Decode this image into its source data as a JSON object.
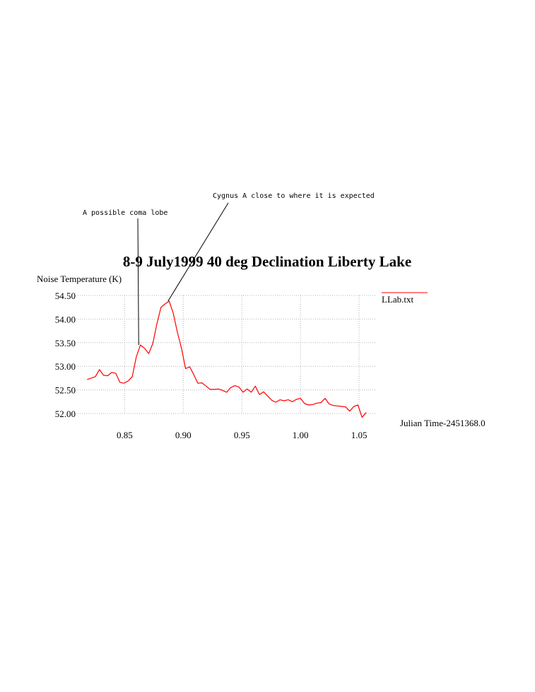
{
  "chart_data": {
    "type": "line",
    "title": "8-9 July1999 40 deg Declination Liberty Lake",
    "ylabel": "Noise Temperature (K)",
    "xlabel": "Julian Time-2451368.0",
    "xlim": [
      0.81,
      1.065
    ],
    "ylim": [
      52.0,
      54.5
    ],
    "xticks": [
      "0.85",
      "0.90",
      "0.95",
      "1.00",
      "1.05"
    ],
    "yticks": [
      "52.00",
      "52.50",
      "53.00",
      "53.50",
      "54.00",
      "54.50"
    ],
    "grid": true,
    "legend_position": "right",
    "series": [
      {
        "name": "LLab.txt",
        "color": "#ff0000",
        "x": [
          0.818,
          0.8215,
          0.825,
          0.8285,
          0.832,
          0.8355,
          0.839,
          0.8425,
          0.846,
          0.8495,
          0.853,
          0.8565,
          0.86,
          0.8635,
          0.867,
          0.8705,
          0.874,
          0.8775,
          0.881,
          0.8845,
          0.888,
          0.8915,
          0.895,
          0.8985,
          0.902,
          0.9055,
          0.909,
          0.9125,
          0.916,
          0.9195,
          0.923,
          0.9265,
          0.93,
          0.9335,
          0.937,
          0.9405,
          0.944,
          0.9475,
          0.951,
          0.9545,
          0.958,
          0.9615,
          0.965,
          0.9685,
          0.972,
          0.9755,
          0.979,
          0.9825,
          0.986,
          0.9895,
          0.993,
          0.9965,
          1.0,
          1.0035,
          1.007,
          1.0105,
          1.014,
          1.0175,
          1.021,
          1.0245,
          1.028,
          1.0315,
          1.035,
          1.0385,
          1.042,
          1.0455,
          1.049,
          1.0525,
          1.056
        ],
        "y": [
          52.72,
          52.75,
          52.78,
          52.93,
          52.81,
          52.8,
          52.87,
          52.85,
          52.66,
          52.64,
          52.69,
          52.78,
          53.2,
          53.45,
          53.38,
          53.27,
          53.48,
          53.9,
          54.25,
          54.32,
          54.38,
          54.12,
          53.72,
          53.38,
          52.95,
          52.99,
          52.82,
          52.64,
          52.65,
          52.58,
          52.51,
          52.51,
          52.52,
          52.49,
          52.45,
          52.55,
          52.59,
          52.56,
          52.45,
          52.52,
          52.45,
          52.58,
          52.4,
          52.46,
          52.37,
          52.28,
          52.24,
          52.29,
          52.27,
          52.29,
          52.25,
          52.3,
          52.32,
          52.21,
          52.18,
          52.19,
          52.22,
          52.23,
          52.32,
          52.2,
          52.17,
          52.16,
          52.15,
          52.14,
          52.05,
          52.15,
          52.18,
          51.92,
          52.02
        ]
      }
    ],
    "annotations": [
      {
        "text": "A possible coma lobe",
        "x": 0.862,
        "y": 53.45
      },
      {
        "text": "Cygnus A close to where it is expected",
        "x": 0.887,
        "y": 54.38
      }
    ]
  }
}
